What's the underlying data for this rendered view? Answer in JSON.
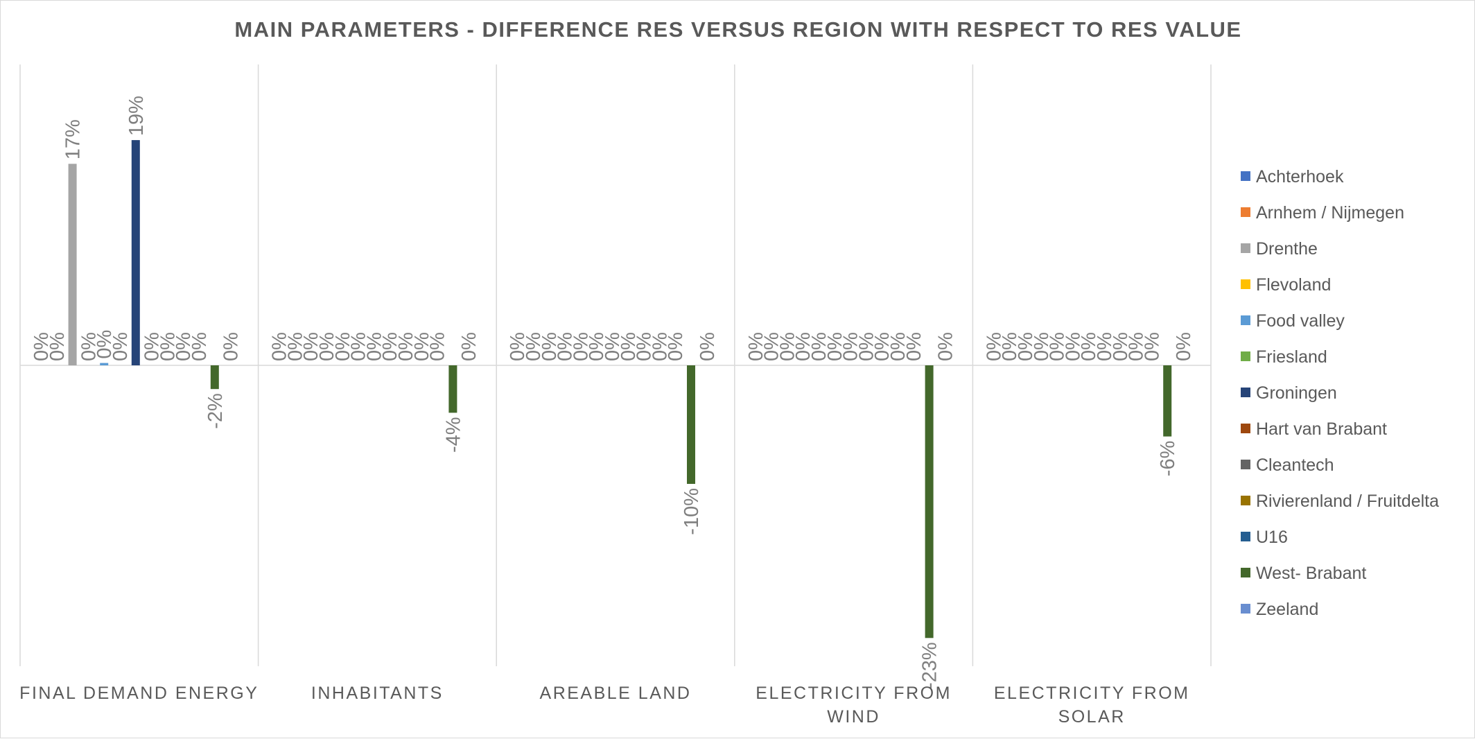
{
  "chart_data": {
    "type": "bar",
    "title": "MAIN PARAMETERS - DIFFERENCE RES VERSUS REGION WITH RESPECT TO RES VALUE",
    "categories": [
      [
        "FINAL DEMAND ENERGY"
      ],
      [
        "INHABITANTS"
      ],
      [
        "AREABLE LAND"
      ],
      [
        "ELECTRICITY FROM",
        "WIND"
      ],
      [
        "ELECTRICITY FROM",
        "SOLAR"
      ]
    ],
    "legend_position": "right",
    "gridlines": false,
    "series": [
      {
        "name": "Achterhoek",
        "color": "#4472C4",
        "values": [
          0,
          0,
          0,
          0,
          0
        ],
        "labels": [
          "0%",
          "0%",
          "0%",
          "0%",
          "0%"
        ]
      },
      {
        "name": "Arnhem / Nijmegen",
        "color": "#ED7D31",
        "values": [
          0,
          0,
          0,
          0,
          0
        ],
        "labels": [
          "0%",
          "0%",
          "0%",
          "0%",
          "0%"
        ]
      },
      {
        "name": "Drenthe",
        "color": "#A5A5A5",
        "values": [
          17,
          0,
          0,
          0,
          0
        ],
        "labels": [
          "17%",
          "0%",
          "0%",
          "0%",
          "0%"
        ]
      },
      {
        "name": "Flevoland",
        "color": "#FFC000",
        "values": [
          0,
          0,
          0,
          0,
          0
        ],
        "labels": [
          "0%",
          "0%",
          "0%",
          "0%",
          "0%"
        ]
      },
      {
        "name": "Food valley",
        "color": "#5B9BD5",
        "values": [
          0.2,
          0,
          0,
          0,
          0
        ],
        "labels": [
          "0%",
          "0%",
          "0%",
          "0%",
          "0%"
        ]
      },
      {
        "name": "Friesland",
        "color": "#70AD47",
        "values": [
          0,
          0,
          0,
          0,
          0
        ],
        "labels": [
          "0%",
          "0%",
          "0%",
          "0%",
          "0%"
        ]
      },
      {
        "name": "Groningen",
        "color": "#264478",
        "values": [
          19,
          0,
          0,
          0,
          0
        ],
        "labels": [
          "19%",
          "0%",
          "0%",
          "0%",
          "0%"
        ]
      },
      {
        "name": "Hart van Brabant",
        "color": "#9E480E",
        "values": [
          0,
          0,
          0,
          0,
          0
        ],
        "labels": [
          "0%",
          "0%",
          "0%",
          "0%",
          "0%"
        ]
      },
      {
        "name": "Cleantech",
        "color": "#636363",
        "values": [
          0,
          0,
          0,
          0,
          0
        ],
        "labels": [
          "0%",
          "0%",
          "0%",
          "0%",
          "0%"
        ]
      },
      {
        "name": "Rivierenland / Fruitdelta",
        "color": "#997300",
        "values": [
          0,
          0,
          0,
          0,
          0
        ],
        "labels": [
          "0%",
          "0%",
          "0%",
          "0%",
          "0%"
        ]
      },
      {
        "name": "U16",
        "color": "#255E91",
        "values": [
          0,
          0,
          0,
          0,
          0
        ],
        "labels": [
          "0%",
          "0%",
          "0%",
          "0%",
          "0%"
        ]
      },
      {
        "name": "West- Brabant",
        "color": "#43682B",
        "values": [
          -2,
          -4,
          -10,
          -23,
          -6
        ],
        "labels": [
          "-2%",
          "-4%",
          "-10%",
          "-23%",
          "-6%"
        ]
      },
      {
        "name": "Zeeland",
        "color": "#698ED0",
        "values": [
          0,
          0,
          0,
          0,
          0
        ],
        "labels": [
          "0%",
          "0%",
          "0%",
          "0%",
          "0%"
        ]
      }
    ]
  }
}
